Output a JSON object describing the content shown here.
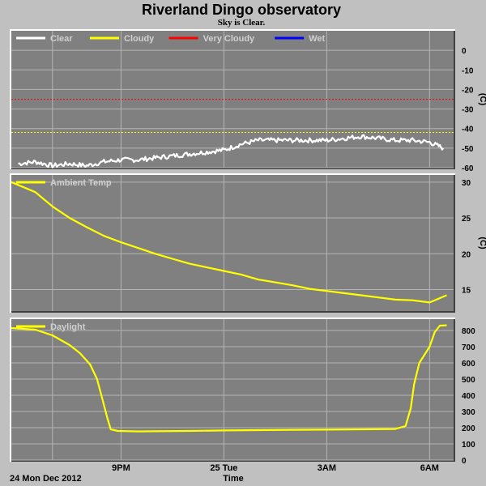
{
  "title": "Riverland Dingo observatory",
  "subtitle": "Sky is Clear.",
  "date_label": "24 Mon Dec 2012",
  "x_axis_label": "Time",
  "x_ticks": [
    {
      "label": "9PM",
      "hour": 21
    },
    {
      "label": "25 Tue",
      "hour": 24
    },
    {
      "label": "3AM",
      "hour": 27
    },
    {
      "label": "6AM",
      "hour": 30
    }
  ],
  "colors": {
    "background": "#c0c0c0",
    "panel": "#808080",
    "grid": "#b4b4b4",
    "clear": "#ffffff",
    "cloudy": "#ffff00",
    "very_cloudy": "#ff0000",
    "wet": "#0000ff"
  },
  "chart_data": [
    {
      "type": "line",
      "name": "sky",
      "unit": "(C)",
      "ylim": [
        -60,
        10
      ],
      "yticks": [
        0,
        -10,
        -20,
        -30,
        -40,
        -50,
        -60
      ],
      "grid": true,
      "legend_position": "top-left",
      "legend": [
        {
          "label": "Clear",
          "color": "#ffffff"
        },
        {
          "label": "Cloudy",
          "color": "#ffff00"
        },
        {
          "label": "Very Cloudy",
          "color": "#ff0000"
        },
        {
          "label": "Wet",
          "color": "#0000ff"
        }
      ],
      "thresholds": [
        {
          "value": -25,
          "color": "#ff0000"
        },
        {
          "value": -42,
          "color": "#ffff00"
        }
      ],
      "series": [
        {
          "name": "Clear",
          "color": "#ffffff",
          "noise": 1.2,
          "x": [
            18.0,
            18.5,
            19.0,
            19.5,
            20.0,
            20.5,
            21.0,
            21.5,
            22.0,
            22.5,
            23.0,
            23.5,
            24.0,
            24.5,
            25.0,
            25.5,
            26.0,
            26.5,
            27.0,
            27.5,
            28.0,
            28.5,
            29.0,
            29.5,
            30.0,
            30.4
          ],
          "y": [
            -58,
            -57,
            -59,
            -58,
            -59,
            -57,
            -56,
            -56,
            -55,
            -54,
            -53,
            -52,
            -51,
            -48,
            -46,
            -46,
            -46,
            -46,
            -46,
            -45,
            -44,
            -45,
            -46,
            -46,
            -47,
            -50
          ]
        }
      ]
    },
    {
      "type": "line",
      "name": "ambient",
      "unit": "(C)",
      "ylim": [
        12,
        31
      ],
      "yticks": [
        15,
        20,
        25,
        30
      ],
      "grid": true,
      "legend_position": "top-left",
      "legend": [
        {
          "label": "Ambient Temp",
          "color": "#ffff00"
        }
      ],
      "series": [
        {
          "name": "Ambient Temp",
          "color": "#ffff00",
          "noise": 0,
          "x": [
            17.8,
            18.5,
            19.0,
            19.5,
            20.0,
            20.5,
            21.0,
            21.5,
            22.0,
            22.5,
            23.0,
            23.5,
            24.0,
            24.5,
            25.0,
            25.5,
            26.0,
            26.5,
            27.0,
            27.5,
            28.0,
            28.5,
            29.0,
            29.5,
            30.0,
            30.5
          ],
          "y": [
            30.0,
            28.6,
            26.6,
            25.0,
            23.7,
            22.5,
            21.6,
            20.8,
            20.0,
            19.3,
            18.6,
            18.1,
            17.6,
            17.1,
            16.4,
            16.0,
            15.6,
            15.1,
            14.8,
            14.5,
            14.2,
            13.9,
            13.6,
            13.5,
            13.2,
            14.2
          ]
        }
      ]
    },
    {
      "type": "line",
      "name": "daylight",
      "unit": "",
      "ylim": [
        0,
        870
      ],
      "yticks": [
        0,
        100,
        200,
        300,
        400,
        500,
        600,
        700,
        800
      ],
      "grid": true,
      "legend_position": "top-left",
      "legend": [
        {
          "label": "Daylight",
          "color": "#ffff00"
        }
      ],
      "series": [
        {
          "name": "Daylight",
          "color": "#ffff00",
          "noise": 0,
          "x": [
            17.8,
            18.5,
            19.0,
            19.5,
            19.8,
            20.1,
            20.3,
            20.45,
            20.6,
            20.7,
            20.9,
            21.5,
            22.0,
            23.0,
            24.0,
            25.0,
            26.0,
            27.0,
            28.0,
            29.0,
            29.3,
            29.45,
            29.55,
            29.7,
            30.0,
            30.15,
            30.3,
            30.5
          ],
          "y": [
            815,
            805,
            770,
            710,
            660,
            590,
            500,
            380,
            260,
            190,
            180,
            177,
            178,
            180,
            183,
            185,
            187,
            188,
            190,
            192,
            210,
            320,
            470,
            600,
            700,
            790,
            830,
            832
          ]
        }
      ]
    }
  ]
}
